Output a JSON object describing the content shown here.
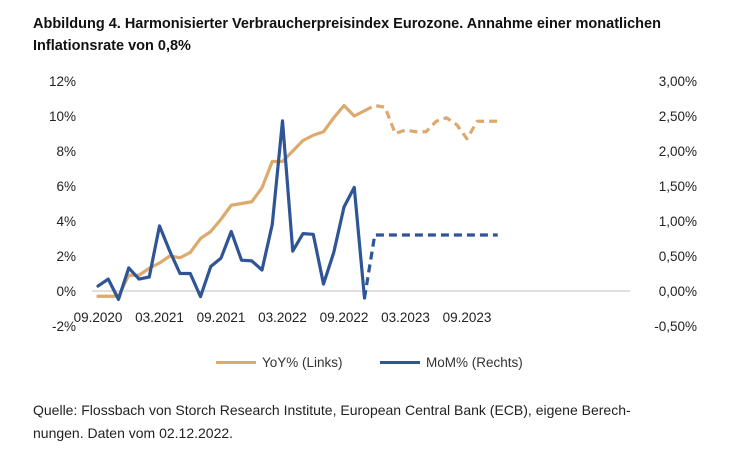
{
  "title_line1": "Abbildung 4. Harmonisierter Verbraucherpreisindex Eurozone. Annahme einer monatlichen",
  "title_line2": "Inflationsrate von 0,8%",
  "source_line1": "Quelle: Flossbach von Storch Research Institute, European Central Bank (ECB), eigene Berech-",
  "source_line2": "nungen. Daten vom 02.12.2022.",
  "colors": {
    "yoy": "#DDAA6E",
    "mom": "#2F5597"
  },
  "chart_data": {
    "type": "line",
    "x_tick_labels": [
      "09.2020",
      "03.2021",
      "09.2021",
      "03.2022",
      "09.2022",
      "03.2023",
      "09.2023"
    ],
    "y_left": {
      "ticks": [
        "12%",
        "10%",
        "8%",
        "6%",
        "4%",
        "2%",
        "0%",
        "-2%"
      ],
      "ylim": [
        -2,
        12
      ]
    },
    "y_right": {
      "ticks": [
        "3,00%",
        "2,50%",
        "2,00%",
        "1,50%",
        "1,00%",
        "0,50%",
        "0,00%",
        "-0,50%"
      ],
      "ylim": [
        -0.5,
        3.0
      ]
    },
    "legend_position": "bottom",
    "series": [
      {
        "name": "YoY% (Links)",
        "axis": "left",
        "start": "09.2020",
        "values": [
          -0.3,
          -0.3,
          -0.3,
          0.9,
          0.9,
          1.3,
          1.6,
          2.0,
          1.9,
          2.2,
          3.0,
          3.4,
          4.1,
          4.9,
          5.0,
          5.1,
          5.9,
          7.4,
          7.4,
          8.0,
          8.6,
          8.9,
          9.1,
          9.9,
          10.6,
          10.0,
          10.3,
          10.6,
          10.5,
          9.0,
          9.2,
          9.1,
          9.1,
          9.7,
          9.9,
          9.5,
          8.7,
          9.7,
          9.7,
          9.7
        ],
        "solid_until": "11.2022",
        "forecast_from": "11.2022"
      },
      {
        "name": "MoM% (Rechts)",
        "axis": "right",
        "start": "09.2020",
        "values": [
          0.07,
          0.17,
          -0.12,
          0.33,
          0.17,
          0.2,
          0.93,
          0.57,
          0.25,
          0.25,
          -0.08,
          0.35,
          0.47,
          0.85,
          0.44,
          0.43,
          0.3,
          0.95,
          2.43,
          0.57,
          0.82,
          0.81,
          0.1,
          0.55,
          1.2,
          1.48,
          -0.1,
          0.8,
          0.8,
          0.8,
          0.8,
          0.8,
          0.8,
          0.8,
          0.8,
          0.8,
          0.8,
          0.8,
          0.8,
          0.8
        ],
        "solid_until": "11.2022",
        "forecast_from": "11.2022"
      }
    ]
  }
}
